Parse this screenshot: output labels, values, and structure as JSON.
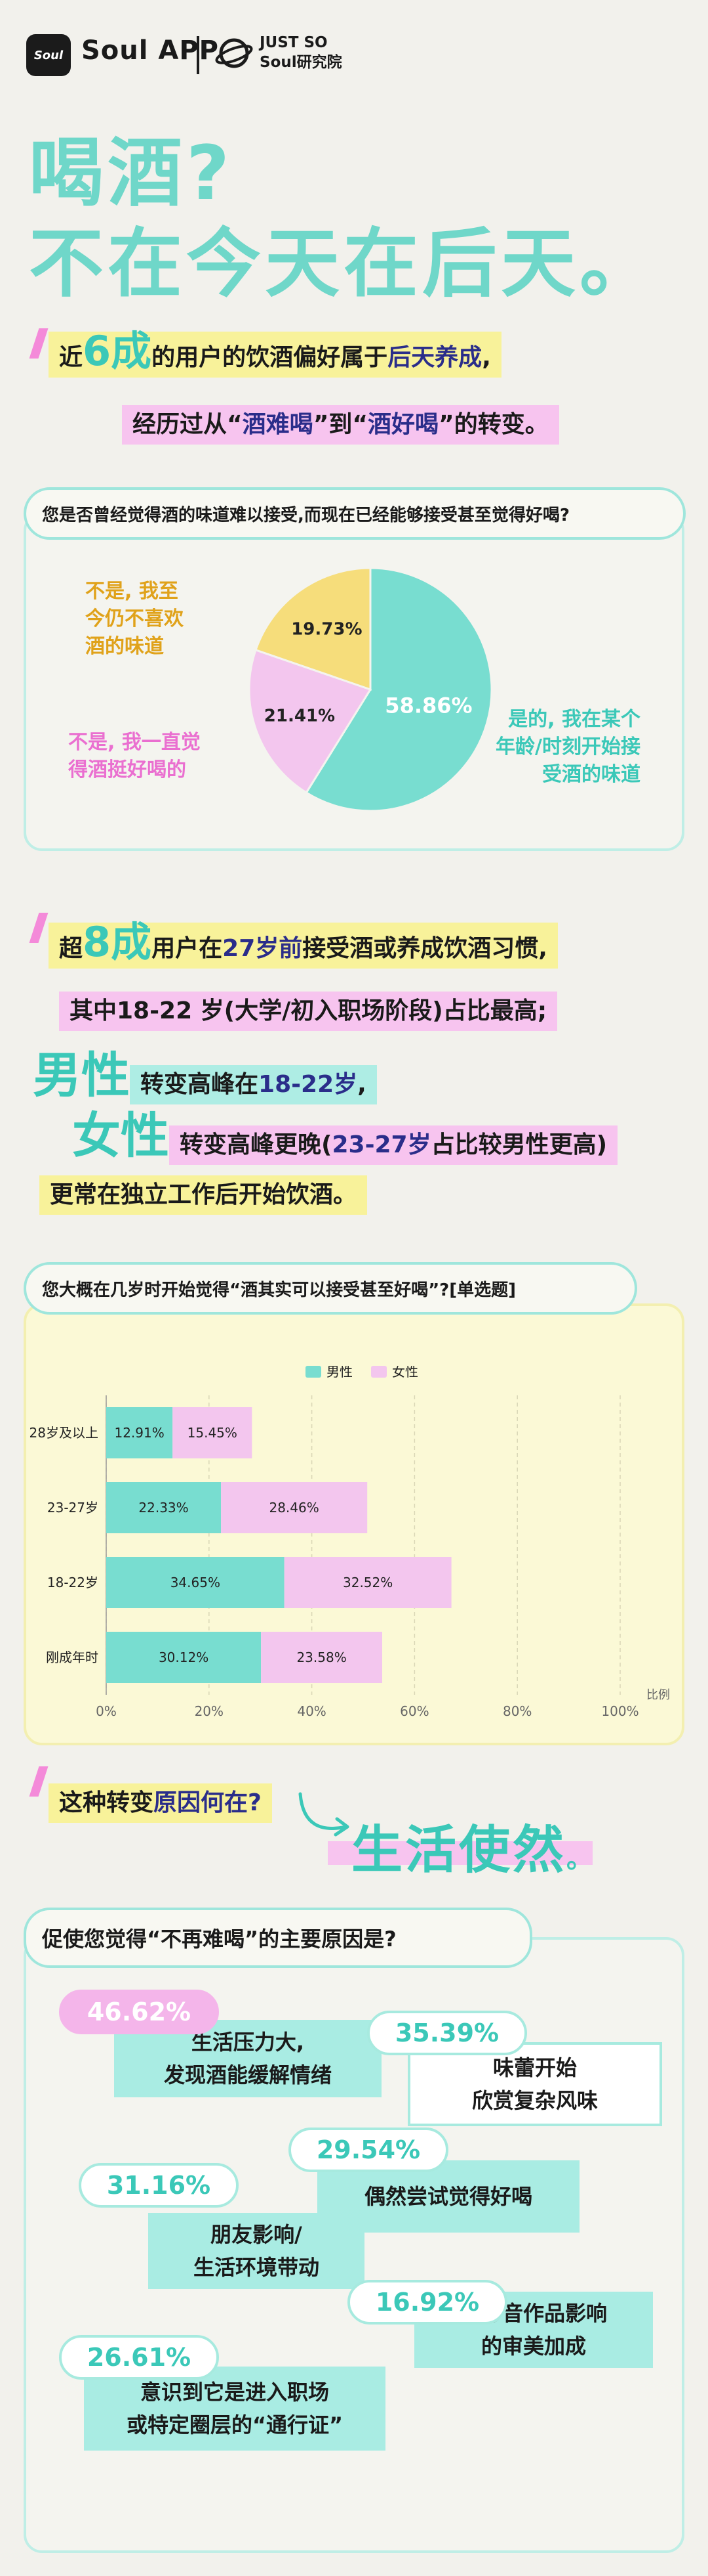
{
  "header": {
    "logo_glyph": "Soul",
    "brand": "Soul APP",
    "partner_line1": "JUST SO",
    "partner_line2": "Soul研究院"
  },
  "headline": {
    "line1": "喝酒?",
    "line2": "不在今天在后天。"
  },
  "intro": {
    "l1_a": "近",
    "l1_num": "6成",
    "l1_b": "的用户的饮酒偏好属于",
    "l1_em": "后天养成",
    "l1_c": ",",
    "l2_a": "经历过从“",
    "l2_em1": "酒难喝",
    "l2_b": "”到“",
    "l2_em2": "酒好喝",
    "l2_c": "”的转变。"
  },
  "pie_chart": {
    "question": "您是否曾经觉得酒的味道难以接受,而现在已经能够接受甚至觉得好喝?",
    "label_yes": [
      "是的, 我在某个",
      "年龄/时刻开始接",
      "受酒的味道"
    ],
    "label_always": [
      "不是, 我一直觉",
      "得酒挺好喝的"
    ],
    "label_never": [
      "不是, 我至",
      "今仍不喜欢",
      "酒的味道"
    ],
    "colors": {
      "yes": "#78ddd0",
      "always": "#f3c6ee",
      "never": "#f6dd7b"
    }
  },
  "age_text": {
    "l1_a": "超",
    "l1_num": "8成",
    "l1_b": "用户在",
    "l1_em": "27岁前",
    "l1_c": "接受酒或养成饮酒习惯,",
    "l2": "其中18-22 岁(大学/初入职场阶段)占比最高;",
    "l3_big": "男性",
    "l3_a": "转变高峰在",
    "l3_em": "18-22岁",
    "l3_b": ",",
    "l4_big": "女性",
    "l4_a": "转变高峰更晚(",
    "l4_em": "23-27岁",
    "l4_b": "占比较男性更高)",
    "l5": "更常在独立工作后开始饮酒。"
  },
  "bar_chart_q": "您大概在几岁时开始觉得“酒其实可以接受甚至好喝”?[单选题]",
  "reasons": {
    "question": "促使您觉得“不再难喝”的主要原因是?",
    "items": [
      {
        "pct": "46.62%",
        "text": [
          "生活压力大,",
          "发现酒能缓解情绪"
        ]
      },
      {
        "pct": "35.39%",
        "text": [
          "味蕾开始",
          "欣赏复杂风味"
        ]
      },
      {
        "pct": "29.54%",
        "text": [
          "偶然尝试觉得好喝"
        ]
      },
      {
        "pct": "31.16%",
        "text": [
          "朋友影响/",
          "生活环境带动"
        ]
      },
      {
        "pct": "16.92%",
        "text": [
          "受影音作品影响",
          "的审美加成"
        ]
      },
      {
        "pct": "26.61%",
        "text": [
          "意识到它是进入职场",
          "或特定圈层的“通行证”"
        ]
      }
    ]
  },
  "cause": {
    "q_a": "这种转变",
    "q_em": "原因何在?",
    "answer": "生活使然",
    "dot": "。"
  },
  "chart_data": [
    {
      "type": "pie",
      "title": "您是否曾经觉得酒的味道难以接受,而现在已经能够接受甚至觉得好喝?",
      "categories": [
        "是的,我在某个年龄/时刻开始接受酒的味道",
        "不是,我一直觉得酒挺好喝的",
        "不是,我至今仍不喜欢酒的味道"
      ],
      "values": [
        58.86,
        21.41,
        19.73
      ],
      "labels": [
        "58.86%",
        "21.41%",
        "19.73%"
      ]
    },
    {
      "type": "bar",
      "orientation": "horizontal",
      "stacked": true,
      "title": "您大概在几岁时开始觉得“酒其实可以接受甚至好喝”?[单选题]",
      "categories": [
        "28岁及以上",
        "23-27岁",
        "18-22岁",
        "刚成年时"
      ],
      "series": [
        {
          "name": "男性",
          "values": [
            12.91,
            22.33,
            34.65,
            30.12
          ],
          "labels": [
            "12.91%",
            "22.33%",
            "34.65%",
            "30.12%"
          ],
          "color": "#78ddd0"
        },
        {
          "name": "女性",
          "values": [
            15.45,
            28.46,
            32.52,
            23.58
          ],
          "labels": [
            "15.45%",
            "28.46%",
            "32.52%",
            "23.58%"
          ],
          "color": "#f3c6ee"
        }
      ],
      "xlim": [
        0,
        100
      ],
      "xticks": [
        "0%",
        "20%",
        "40%",
        "60%",
        "80%",
        "100%"
      ],
      "xlabel": "比例",
      "legend": "top-center"
    }
  ]
}
